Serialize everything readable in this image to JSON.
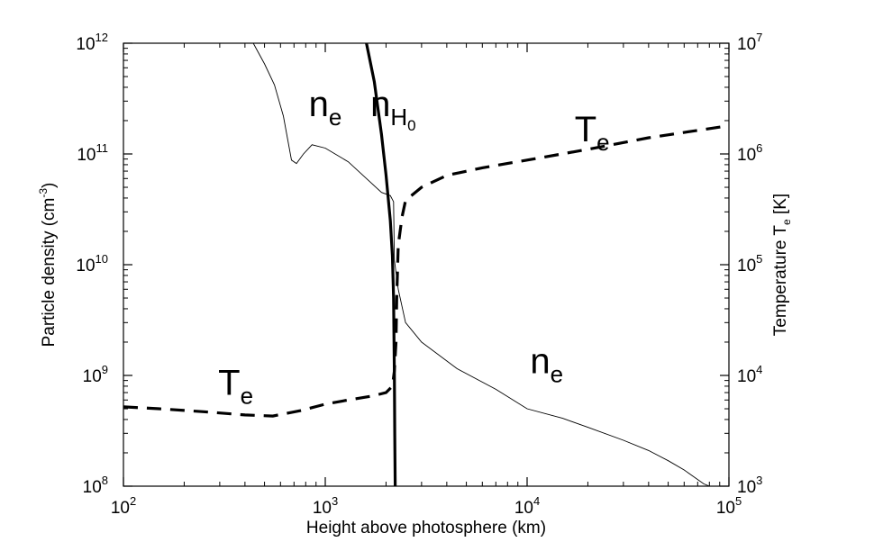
{
  "chart_data": {
    "type": "line",
    "xlabel": "Height above photosphere (km)",
    "ylabel_left_main": "Particle density (cm",
    "ylabel_left_sup": "-3",
    "ylabel_left_tail": ")",
    "ylabel_right_main": "Temperature T",
    "ylabel_right_sub": "e",
    "ylabel_right_tail": " [K]",
    "x_scale": "log",
    "y_scale": "log",
    "xlim": [
      100,
      100000
    ],
    "ylim_left": [
      100000000,
      1000000000000
    ],
    "ylim_right": [
      1000,
      10000000
    ],
    "grid": false,
    "legend": "none",
    "x_ticks": [
      {
        "base": "10",
        "exp": "2",
        "value": 100
      },
      {
        "base": "10",
        "exp": "3",
        "value": 1000
      },
      {
        "base": "10",
        "exp": "4",
        "value": 10000
      },
      {
        "base": "10",
        "exp": "5",
        "value": 100000
      }
    ],
    "y_left_ticks": [
      {
        "base": "10",
        "exp": "8",
        "value": 100000000
      },
      {
        "base": "10",
        "exp": "9",
        "value": 1000000000
      },
      {
        "base": "10",
        "exp": "10",
        "value": 10000000000
      },
      {
        "base": "10",
        "exp": "11",
        "value": 100000000000
      },
      {
        "base": "10",
        "exp": "12",
        "value": 1000000000000
      }
    ],
    "y_right_ticks": [
      {
        "base": "10",
        "exp": "3",
        "value": 1000
      },
      {
        "base": "10",
        "exp": "4",
        "value": 10000
      },
      {
        "base": "10",
        "exp": "5",
        "value": 100000
      },
      {
        "base": "10",
        "exp": "6",
        "value": 1000000
      },
      {
        "base": "10",
        "exp": "7",
        "value": 10000000
      }
    ],
    "series": [
      {
        "axis": "left",
        "style": "thin",
        "points": [
          [
            440,
            1000000000000
          ],
          [
            500,
            650000000000
          ],
          [
            560,
            420000000000
          ],
          [
            620,
            220000000000
          ],
          [
            680,
            88000000000
          ],
          [
            720,
            82000000000
          ],
          [
            780,
            100000000000
          ],
          [
            860,
            121000000000
          ],
          [
            1000,
            113000000000
          ],
          [
            1300,
            85000000000
          ],
          [
            1600,
            60000000000
          ],
          [
            1900,
            45000000000
          ],
          [
            2100,
            42000000000
          ],
          [
            2180,
            37000000000
          ],
          [
            2200,
            11000000000
          ],
          [
            2300,
            6000000000
          ],
          [
            2500,
            3000000000
          ],
          [
            3000,
            2000000000
          ],
          [
            4500,
            1150000000
          ],
          [
            7000,
            750000000
          ],
          [
            10000,
            500000000
          ],
          [
            15000,
            410000000
          ],
          [
            20000,
            340000000
          ],
          [
            30000,
            260000000
          ],
          [
            40000,
            210000000
          ],
          [
            50000,
            170000000
          ],
          [
            60000,
            140000000
          ],
          [
            75000,
            105000000
          ],
          [
            80000,
            100000000
          ]
        ]
      },
      {
        "axis": "left",
        "style": "thick",
        "points": [
          [
            1600,
            1000000000000
          ],
          [
            1750,
            450000000000
          ],
          [
            1900,
            150000000000
          ],
          [
            2000,
            65000000000
          ],
          [
            2100,
            25000000000
          ],
          [
            2150,
            12000000000
          ],
          [
            2180,
            5000000000
          ],
          [
            2200,
            1000000000
          ],
          [
            2210,
            300000000
          ],
          [
            2220,
            100000000
          ]
        ]
      },
      {
        "axis": "right",
        "style": "dashed",
        "points": [
          [
            100,
            5200
          ],
          [
            150,
            5000
          ],
          [
            250,
            4700
          ],
          [
            400,
            4400
          ],
          [
            550,
            4300
          ],
          [
            750,
            4800
          ],
          [
            1000,
            5500
          ],
          [
            1300,
            6000
          ],
          [
            1700,
            6500
          ],
          [
            2000,
            7000
          ],
          [
            2150,
            8000
          ],
          [
            2200,
            11000
          ],
          [
            2240,
            20000
          ],
          [
            2260,
            50000
          ],
          [
            2300,
            150000
          ],
          [
            2400,
            270000
          ],
          [
            2500,
            380000
          ],
          [
            3000,
            500000
          ],
          [
            4000,
            640000
          ],
          [
            6000,
            750000
          ],
          [
            10000,
            880000
          ],
          [
            20000,
            1100000
          ],
          [
            40000,
            1400000
          ],
          [
            100000,
            1800000
          ]
        ]
      }
    ],
    "annotations": [
      {
        "text": "n",
        "sub": "e",
        "x": 1000,
        "y": 220000000000,
        "axis": "left"
      },
      {
        "text": "n",
        "sub": "H",
        "subsub": "0",
        "x": 2170,
        "y": 220000000000,
        "axis": "left"
      },
      {
        "text": "T",
        "sub": "e",
        "x": 21000,
        "y": 1300000,
        "axis": "right"
      },
      {
        "text": "T",
        "sub": "e",
        "x": 360,
        "y": 6700,
        "axis": "right"
      },
      {
        "text": "n",
        "sub": "e",
        "x": 12500,
        "y": 1050000000,
        "axis": "left"
      }
    ]
  }
}
